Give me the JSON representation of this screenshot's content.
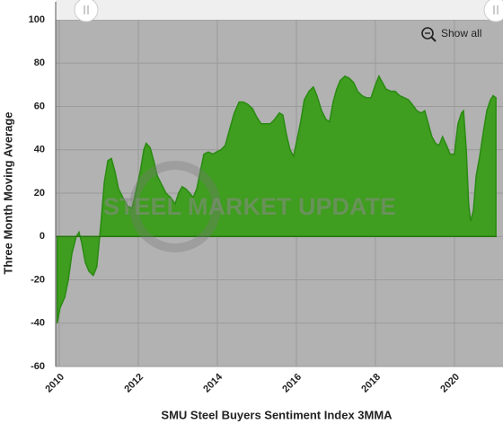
{
  "chart_data": {
    "type": "area",
    "xlabel": "SMU Steel Buyers Sentiment Index 3MMA",
    "ylabel": "Three Month Moving Average",
    "show_all": "Show all",
    "watermark": "STEEL MARKET UPDATE",
    "color": "#3f9d1f",
    "line_color": "#2a8a12",
    "grid": true,
    "xlim": [
      2009.91,
      2021.07
    ],
    "ylim": [
      -60,
      100
    ],
    "xticks": [
      2010,
      2012,
      2014,
      2016,
      2018,
      2020
    ],
    "yticks": [
      -60,
      -40,
      -20,
      0,
      20,
      40,
      60,
      80,
      100
    ],
    "x": [
      2009.95,
      2010.02,
      2010.14,
      2010.23,
      2010.32,
      2010.43,
      2010.5,
      2010.57,
      2010.66,
      2010.75,
      2010.86,
      2010.95,
      2011.05,
      2011.14,
      2011.23,
      2011.32,
      2011.41,
      2011.5,
      2011.61,
      2011.73,
      2011.84,
      2011.93,
      2012.05,
      2012.14,
      2012.2,
      2012.3,
      2012.39,
      2012.48,
      2012.59,
      2012.7,
      2012.82,
      2012.93,
      2013.02,
      2013.11,
      2013.2,
      2013.3,
      2013.39,
      2013.48,
      2013.57,
      2013.66,
      2013.77,
      2013.89,
      2013.98,
      2014.09,
      2014.2,
      2014.32,
      2014.43,
      2014.55,
      2014.66,
      2014.77,
      2014.89,
      2015,
      2015.11,
      2015.23,
      2015.34,
      2015.45,
      2015.57,
      2015.66,
      2015.75,
      2015.84,
      2015.93,
      2016.02,
      2016.11,
      2016.2,
      2016.32,
      2016.43,
      2016.52,
      2016.64,
      2016.75,
      2016.84,
      2016.93,
      2017.02,
      2017.11,
      2017.23,
      2017.34,
      2017.45,
      2017.55,
      2017.66,
      2017.77,
      2017.89,
      2018,
      2018.09,
      2018.18,
      2018.27,
      2018.39,
      2018.5,
      2018.61,
      2018.73,
      2018.84,
      2018.93,
      2019.05,
      2019.16,
      2019.25,
      2019.34,
      2019.43,
      2019.52,
      2019.61,
      2019.7,
      2019.8,
      2019.89,
      2020,
      2020.09,
      2020.18,
      2020.23,
      2020.3,
      2020.36,
      2020.41,
      2020.48,
      2020.55,
      2020.64,
      2020.73,
      2020.82,
      2020.91,
      2020.98,
      2021.05
    ],
    "values": [
      -40,
      -33,
      -28,
      -20,
      -8,
      0,
      2,
      -3,
      -12,
      -16,
      -18,
      -14,
      5,
      25,
      35,
      36,
      30,
      22,
      18,
      14,
      13,
      20,
      30,
      40,
      43,
      41,
      35,
      28,
      24,
      20,
      18,
      15,
      20,
      23,
      22,
      20,
      18,
      22,
      30,
      38,
      39,
      38,
      39,
      40,
      42,
      50,
      57,
      62,
      62,
      61,
      59,
      55,
      52,
      52,
      52,
      54,
      57,
      56,
      47,
      40,
      37,
      45,
      53,
      63,
      67,
      69,
      65,
      58,
      54,
      53,
      62,
      68,
      72,
      74,
      73,
      71,
      67,
      65,
      64,
      64,
      70,
      74,
      71,
      68,
      67,
      67,
      65,
      64,
      63,
      61,
      58,
      57,
      58,
      52,
      46,
      43,
      42,
      46,
      42,
      38,
      38,
      52,
      57,
      58,
      40,
      15,
      7,
      12,
      28,
      37,
      48,
      58,
      63,
      65,
      64
    ]
  }
}
